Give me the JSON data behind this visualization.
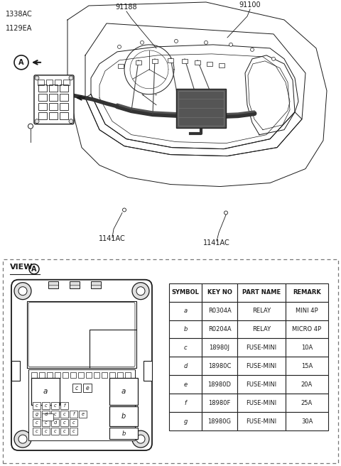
{
  "bg_color": "#ffffff",
  "line_color": "#1a1a1a",
  "dashed_border_color": "#777777",
  "table_border_color": "#222222",
  "table_headers": [
    "SYMBOL",
    "KEY NO",
    "PART NAME",
    "REMARK"
  ],
  "table_data": [
    [
      "a",
      "R0304A",
      "RELAY",
      "MINI 4P"
    ],
    [
      "b",
      "R0204A",
      "RELAY",
      "MICRO 4P"
    ],
    [
      "c",
      "18980J",
      "FUSE-MINI",
      "10A"
    ],
    [
      "d",
      "18980C",
      "FUSE-MINI",
      "15A"
    ],
    [
      "e",
      "18980D",
      "FUSE-MINI",
      "20A"
    ],
    [
      "f",
      "18980F",
      "FUSE-MINI",
      "25A"
    ],
    [
      "g",
      "18980G",
      "FUSE-MINI",
      "30A"
    ]
  ]
}
